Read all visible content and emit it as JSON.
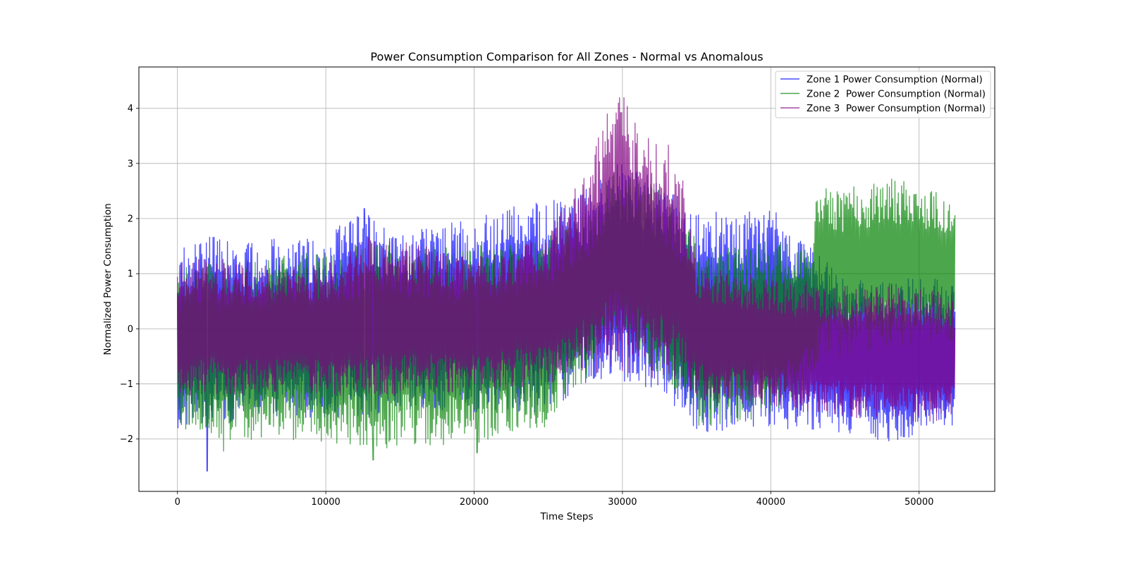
{
  "chart_data": {
    "type": "line",
    "title": "Power Consumption Comparison for All Zones - Normal vs Anomalous",
    "xlabel": "Time Steps",
    "ylabel": "Normalized Power Consumption",
    "xlim": [
      -2600,
      55100
    ],
    "ylim": [
      -2.95,
      4.75
    ],
    "xticks": [
      0,
      10000,
      20000,
      30000,
      40000,
      50000
    ],
    "yticks": [
      -2,
      -1,
      0,
      1,
      2,
      3,
      4
    ],
    "grid": true,
    "legend_position": "top-right",
    "x_max": 52416,
    "series": [
      {
        "name": "Zone 1 Power Consumption (Normal)",
        "color": "#0000ff",
        "envelope": {
          "x": [
            0,
            500,
            2000,
            5000,
            10000,
            12500,
            15000,
            20000,
            25000,
            26000,
            28000,
            29500,
            31000,
            33000,
            34500,
            35000,
            40000,
            45000,
            48000,
            50000,
            52416
          ],
          "high": [
            1.3,
            1.55,
            1.7,
            1.6,
            1.7,
            2.15,
            1.75,
            2.0,
            2.4,
            2.3,
            2.6,
            3.1,
            2.9,
            2.6,
            2.3,
            2.1,
            2.2,
            0.9,
            0.85,
            0.95,
            0.85
          ],
          "low": [
            -2.0,
            -1.8,
            -1.75,
            -1.65,
            -1.6,
            -1.6,
            -1.6,
            -1.55,
            -1.5,
            -1.3,
            -1.05,
            -0.95,
            -1.1,
            -1.3,
            -1.6,
            -1.9,
            -1.8,
            -1.9,
            -2.05,
            -1.95,
            -1.75
          ],
          "spikes": [
            [
              2000,
              -2.58
            ],
            [
              12600,
              2.18
            ]
          ]
        }
      },
      {
        "name": "Zone 2  Power Consumption (Normal)",
        "color": "#008000",
        "envelope": {
          "x": [
            0,
            500,
            2000,
            5000,
            10000,
            13000,
            15000,
            20000,
            25000,
            26000,
            28000,
            29500,
            31000,
            33000,
            34500,
            35000,
            40000,
            42800,
            43000,
            45000,
            48000,
            50000,
            52416
          ],
          "high": [
            1.1,
            1.2,
            1.25,
            1.3,
            1.4,
            1.6,
            1.5,
            1.5,
            1.7,
            1.8,
            2.2,
            3.2,
            2.8,
            2.4,
            2.0,
            1.5,
            1.6,
            1.6,
            2.6,
            2.55,
            2.75,
            2.65,
            2.3
          ],
          "low": [
            -1.9,
            -1.85,
            -2.0,
            -2.05,
            -2.05,
            -2.2,
            -2.15,
            -2.1,
            -1.8,
            -1.3,
            -0.8,
            0.0,
            -0.5,
            -1.0,
            -1.5,
            -1.8,
            -1.6,
            -1.0,
            -0.7,
            -0.5,
            -0.3,
            -0.3,
            -0.2
          ],
          "spikes": [
            [
              3100,
              -2.22
            ],
            [
              13200,
              -2.38
            ],
            [
              20200,
              -2.25
            ]
          ]
        }
      },
      {
        "name": "Zone 3  Power Consumption (Normal)",
        "color": "#800080",
        "envelope": {
          "x": [
            0,
            500,
            2000,
            5000,
            10000,
            13000,
            15000,
            20000,
            25000,
            26000,
            27500,
            29000,
            30000,
            31500,
            33000,
            34000,
            35000,
            40000,
            45000,
            48000,
            50000,
            52416
          ],
          "high": [
            1.25,
            1.25,
            1.35,
            1.2,
            1.15,
            1.7,
            1.6,
            1.3,
            1.7,
            2.3,
            2.8,
            4.0,
            4.5,
            3.6,
            3.4,
            2.9,
            1.2,
            0.9,
            0.8,
            0.8,
            0.75,
            0.6
          ],
          "low": [
            -1.25,
            -1.25,
            -1.2,
            -1.2,
            -1.2,
            -1.25,
            -1.2,
            -1.15,
            -1.05,
            -0.9,
            -0.8,
            -0.8,
            -0.8,
            -0.9,
            -1.0,
            -1.2,
            -1.3,
            -1.4,
            -1.6,
            -1.7,
            -1.7,
            -1.65
          ]
        }
      }
    ]
  }
}
